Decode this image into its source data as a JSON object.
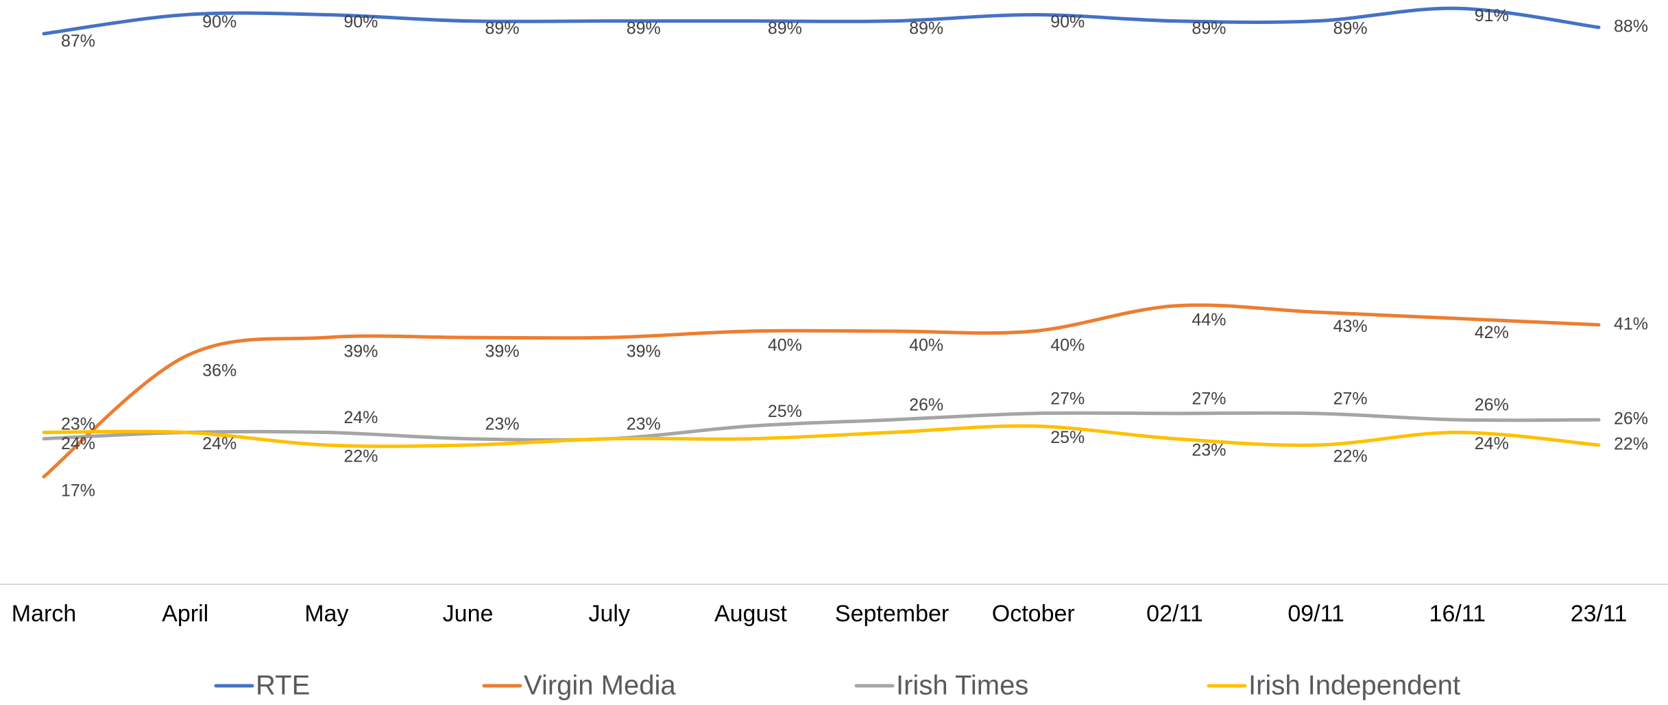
{
  "chart_data": {
    "type": "line",
    "categories": [
      "March",
      "April",
      "May",
      "June",
      "July",
      "August",
      "September",
      "October",
      "02/11",
      "09/11",
      "16/11",
      "23/11"
    ],
    "ylim": [
      0,
      92
    ],
    "smooth": true,
    "legend": "bottom",
    "series": [
      {
        "name": "RTE",
        "color": "#4472c4",
        "values": [
          87,
          90,
          90,
          89,
          89,
          89,
          89,
          90,
          89,
          89,
          91,
          88
        ],
        "value_labels": [
          "87%",
          "90%",
          "90%",
          "89%",
          "89%",
          "89%",
          "89%",
          "90%",
          "89%",
          "89%",
          "91%",
          "88%"
        ]
      },
      {
        "name": "Virgin Media",
        "color": "#ed7d31",
        "values": [
          17,
          36,
          39,
          39,
          39,
          40,
          40,
          40,
          44,
          43,
          42,
          41
        ],
        "value_labels": [
          "17%",
          "36%",
          "39%",
          "39%",
          "39%",
          "40%",
          "40%",
          "40%",
          "44%",
          "43%",
          "42%",
          "41%"
        ]
      },
      {
        "name": "Irish Times",
        "color": "#a5a5a5",
        "values": [
          23,
          24,
          24,
          23,
          23,
          25,
          26,
          27,
          27,
          27,
          26,
          26
        ],
        "value_labels": [
          "23%",
          null,
          "24%",
          "23%",
          "23%",
          "25%",
          "26%",
          "27%",
          "27%",
          "27%",
          "26%",
          "26%"
        ]
      },
      {
        "name": "Irish Independent",
        "color": "#ffc000",
        "values": [
          24,
          24,
          22,
          22,
          23,
          23,
          24,
          25,
          23,
          22,
          24,
          22
        ],
        "value_labels": [
          "24%",
          "24%",
          "22%",
          null,
          null,
          null,
          null,
          "25%",
          "23%",
          "22%",
          "24%",
          "22%"
        ]
      }
    ]
  }
}
